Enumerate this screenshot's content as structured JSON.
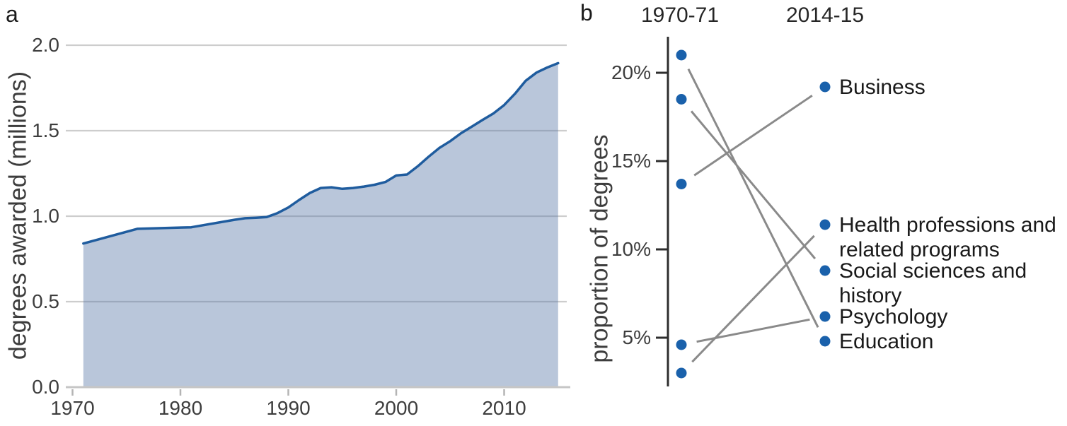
{
  "panels": {
    "a": {
      "letter": "a",
      "ylabel": "degrees awarded (millions)"
    },
    "b": {
      "letter": "b",
      "ylabel": "proportion of degrees"
    }
  },
  "colors": {
    "line_blue": "#1f5c9e",
    "area_fill_rgba": "rgba(88,118,168,0.42)",
    "dot_blue": "#1a61ab",
    "slope_line_gray": "#8a8a8a",
    "gridline_gray": "#cdcdcd",
    "light_axis_gray": "#c6c6c6",
    "light_tick_gray": "#b4b4b4",
    "dark_axis": "#2e2e2e",
    "tick_text": "#3d3d3d",
    "label_text": "#1a1a1a"
  },
  "chart_data": [
    {
      "type": "area",
      "panel": "a",
      "title": "",
      "xlabel": "",
      "ylabel": "degrees awarded (millions)",
      "x": [
        1971,
        1976,
        1981,
        1985,
        1986,
        1987,
        1988,
        1989,
        1990,
        1991,
        1992,
        1993,
        1994,
        1995,
        1996,
        1997,
        1998,
        1999,
        2000,
        2001,
        2002,
        2003,
        2004,
        2005,
        2006,
        2007,
        2008,
        2009,
        2010,
        2011,
        2012,
        2013,
        2014,
        2015
      ],
      "y": [
        0.84,
        0.926,
        0.935,
        0.979,
        0.988,
        0.991,
        0.995,
        1.018,
        1.051,
        1.095,
        1.136,
        1.165,
        1.169,
        1.16,
        1.165,
        1.173,
        1.184,
        1.2,
        1.238,
        1.244,
        1.292,
        1.348,
        1.399,
        1.439,
        1.485,
        1.524,
        1.563,
        1.601,
        1.65,
        1.716,
        1.792,
        1.84,
        1.87,
        1.895
      ],
      "xlim": [
        1969.5,
        2015.5
      ],
      "ylim": [
        0,
        2.0
      ],
      "grid": true,
      "xticks": {
        "values": [
          1970,
          1980,
          1990,
          2000,
          2010
        ],
        "labels": [
          "1970",
          "1980",
          "1990",
          "2000",
          "2010"
        ]
      },
      "yticks": {
        "values": [
          0.0,
          0.5,
          1.0,
          1.5,
          2.0
        ],
        "labels": [
          "0.0",
          "0.5",
          "1.0",
          "1.5",
          "2.0"
        ]
      }
    },
    {
      "type": "slope",
      "panel": "b",
      "title": "",
      "ylabel": "proportion of degrees",
      "columns": [
        "1970-71",
        "2014-15"
      ],
      "ylim": [
        2.2,
        22
      ],
      "yticks": {
        "values": [
          20,
          15,
          10,
          5
        ],
        "labels": [
          "20%",
          "15%",
          "10%",
          "5%"
        ]
      },
      "series": [
        {
          "name": "Education",
          "values": [
            21.0,
            4.8
          ]
        },
        {
          "name": "Social sciences and history",
          "values": [
            18.5,
            8.8
          ]
        },
        {
          "name": "Business",
          "values": [
            13.7,
            19.2
          ]
        },
        {
          "name": "Psychology",
          "values": [
            4.6,
            6.2
          ]
        },
        {
          "name": "Health professions and related programs",
          "values": [
            3.0,
            11.4
          ]
        }
      ],
      "labels": [
        {
          "lines": [
            "Business"
          ],
          "value": 19.2
        },
        {
          "lines": [
            "Health professions and",
            "related programs"
          ],
          "value": 11.4
        },
        {
          "lines": [
            "Social sciences and",
            "history"
          ],
          "value": 8.8
        },
        {
          "lines": [
            "Psychology"
          ],
          "value": 6.2
        },
        {
          "lines": [
            "Education"
          ],
          "value": 4.8
        }
      ]
    }
  ]
}
